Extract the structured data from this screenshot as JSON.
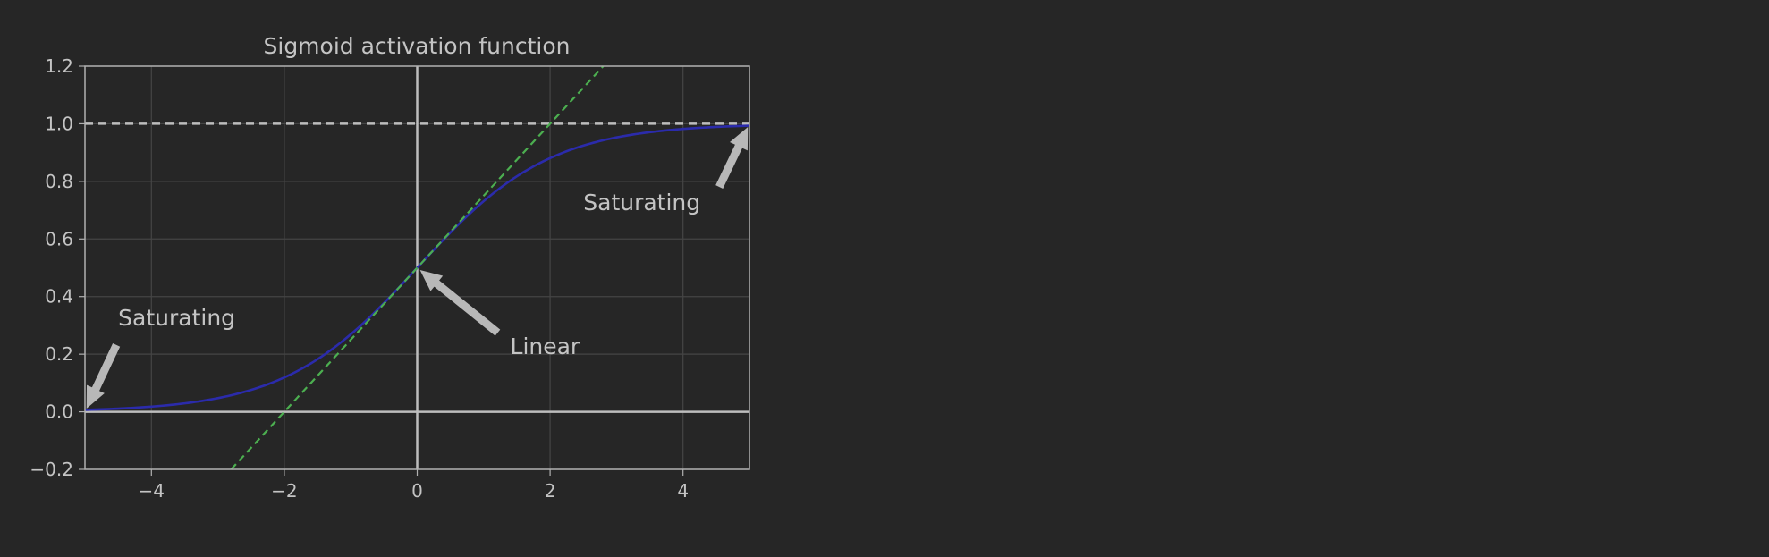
{
  "chart_data": {
    "type": "line",
    "title": "Sigmoid activation function",
    "xlabel": "",
    "ylabel": "",
    "xlim": [
      -5,
      5
    ],
    "ylim": [
      -0.2,
      1.2
    ],
    "xticks": [
      -4,
      -2,
      0,
      2,
      4
    ],
    "xtick_labels": [
      "−4",
      "−2",
      "0",
      "2",
      "4"
    ],
    "yticks": [
      -0.2,
      0.0,
      0.2,
      0.4,
      0.6,
      0.8,
      1.0,
      1.2
    ],
    "ytick_labels": [
      "−0.2",
      "0.0",
      "0.2",
      "0.4",
      "0.6",
      "0.8",
      "1.0",
      "1.2"
    ],
    "grid": true,
    "series": [
      {
        "function": "sigmoid",
        "color": "#2b2bab",
        "style": "solid",
        "x": [
          -5,
          -4,
          -3,
          -2,
          -1,
          0,
          1,
          2,
          3,
          4,
          5
        ],
        "y": [
          0.007,
          0.018,
          0.047,
          0.119,
          0.269,
          0.5,
          0.731,
          0.881,
          0.953,
          0.982,
          0.993
        ]
      },
      {
        "function": "tangent at 0",
        "color": "#4caf50",
        "style": "dashed",
        "x": [
          -2.8,
          2.8
        ],
        "y": [
          -0.2,
          1.2
        ]
      }
    ],
    "reference_lines": [
      {
        "axis": "y",
        "value": 1.0,
        "color": "#bdbdbd",
        "style": "dashed"
      },
      {
        "axis": "y",
        "value": 0.0,
        "color": "#bdbdbd",
        "style": "solid"
      },
      {
        "axis": "x",
        "value": 0.0,
        "color": "#bdbdbd",
        "style": "solid"
      }
    ],
    "annotations": [
      {
        "text": "Saturating",
        "text_at": [
          -4.5,
          0.3
        ],
        "arrow_to": [
          -5,
          0
        ]
      },
      {
        "text": "Saturating",
        "text_at": [
          2.5,
          0.7
        ],
        "arrow_to": [
          5,
          1
        ]
      },
      {
        "text": "Linear",
        "text_at": [
          1.4,
          0.2
        ],
        "arrow_to": [
          0,
          0.5
        ]
      }
    ]
  },
  "colors": {
    "background": "#262626",
    "grid": "#454545",
    "spine": "#b0b0b0",
    "text": "#c4c4c4",
    "arrow": "#b8b8b8"
  }
}
